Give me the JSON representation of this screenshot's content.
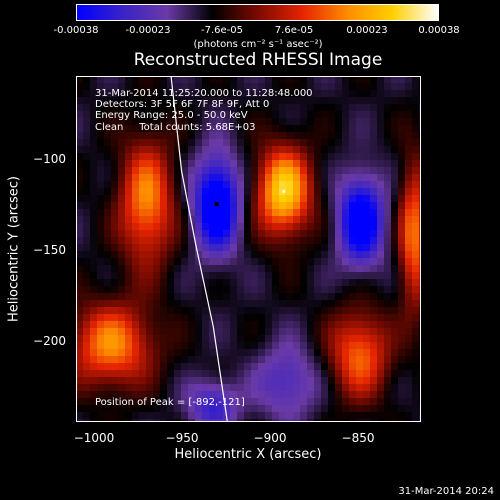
{
  "colorbar": {
    "tick_labels": [
      "-0.00038",
      "-0.00023",
      "-7.6e-05",
      "7.6e-05",
      "0.00023",
      "0.00038"
    ],
    "unit_label": "(photons cm⁻² s⁻¹ asec⁻²)",
    "colors": [
      "#0000ff",
      "#3a22c8",
      "#6a3aa6",
      "#000000",
      "#7a0a00",
      "#e62400",
      "#ff8c00",
      "#ffd000",
      "#ffffff"
    ]
  },
  "title": "Reconstructed RHESSI Image",
  "info": {
    "time_range": "31-Mar-2014 11:25:20.000 to 11:28:48.000",
    "detectors": "Detectors: 3F 5F 6F 7F 8F 9F, Att 0",
    "energy": "Energy Range: 25.0 - 50.0 keV",
    "clean": "Clean     Total counts: 5.68E+03",
    "peak": "Position of Peak = [-892,-121]"
  },
  "axes": {
    "xlabel": "Heliocentric X (arcsec)",
    "ylabel": "Heliocentric Y (arcsec)"
  },
  "footer": "31-Mar-2014 20:24",
  "chart_data": {
    "type": "heatmap",
    "title": "Reconstructed RHESSI Image",
    "xlabel": "Heliocentric X (arcsec)",
    "ylabel": "Heliocentric Y (arcsec)",
    "xlim": [
      -1010,
      -814
    ],
    "ylim": [
      -247,
      -58
    ],
    "x_ticks": [
      -1000,
      -950,
      -900,
      -850
    ],
    "x_tick_labels": [
      "−1000",
      "−950",
      "−900",
      "−850"
    ],
    "y_ticks": [
      -100,
      -150,
      -200
    ],
    "y_tick_labels": [
      "−100",
      "−150",
      "−200"
    ],
    "value_range": [
      -0.00038,
      0.00038
    ],
    "peak": [
      -892,
      -121
    ],
    "sources": [
      {
        "x": -892,
        "y": -121,
        "value": 0.00038,
        "sx": 11,
        "sy": 17
      },
      {
        "x": -970,
        "y": -127,
        "value": 0.00028,
        "sx": 11,
        "sy": 24
      },
      {
        "x": -990,
        "y": -205,
        "value": 0.00028,
        "sx": 17,
        "sy": 16
      },
      {
        "x": -849,
        "y": -210,
        "value": 0.00025,
        "sx": 12,
        "sy": 17
      },
      {
        "x": -818,
        "y": -145,
        "value": 0.00026,
        "sx": 6,
        "sy": 28
      },
      {
        "x": -930,
        "y": -128,
        "value": -0.00036,
        "sx": 9,
        "sy": 18
      },
      {
        "x": -848,
        "y": -137,
        "value": -0.00033,
        "sx": 9,
        "sy": 17
      },
      {
        "x": -932,
        "y": -238,
        "value": -0.00018,
        "sx": 10,
        "sy": 10
      },
      {
        "x": -890,
        "y": -225,
        "value": -0.00015,
        "sx": 12,
        "sy": 14
      }
    ],
    "limb_points": [
      [
        -956,
        -58
      ],
      [
        -950,
        -110
      ],
      [
        -942,
        -150
      ],
      [
        -932,
        -195
      ],
      [
        -924,
        -247
      ]
    ]
  }
}
